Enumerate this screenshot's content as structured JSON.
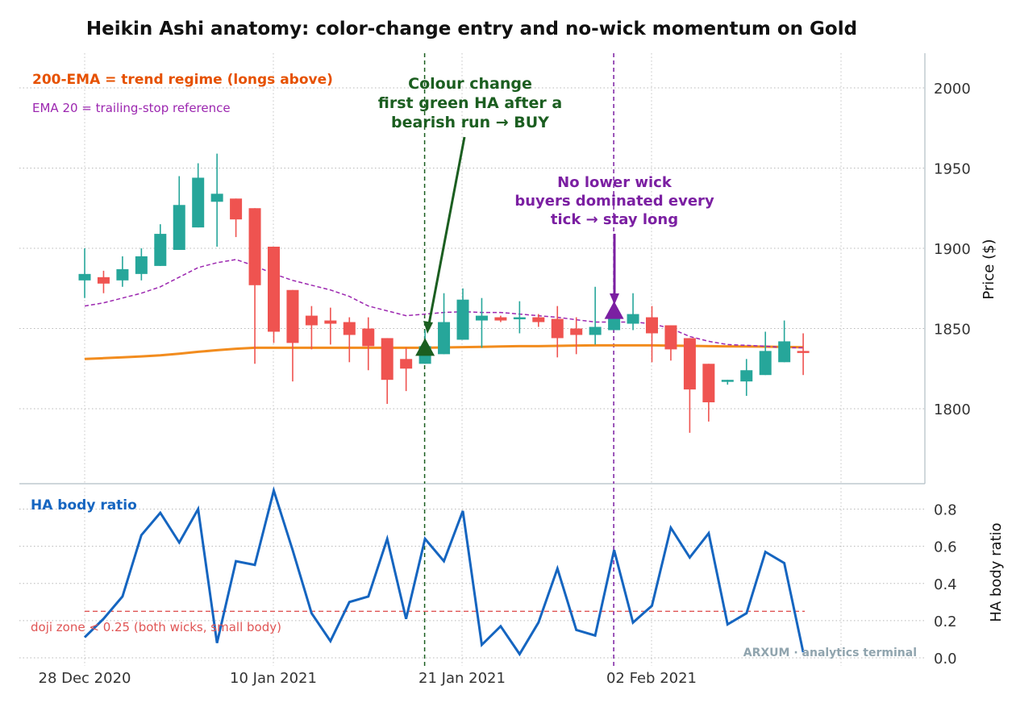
{
  "title": "Heikin Ashi anatomy: color-change entry and no-wick momentum on Gold",
  "watermark": "ARXUM · analytics terminal",
  "chart_data": [
    {
      "type": "candlestick",
      "panel": "price",
      "ylabel": "Price ($)",
      "ylim": [
        1760,
        2022
      ],
      "yticks": [
        1800,
        1850,
        1900,
        1950,
        2000
      ],
      "grid": true,
      "colors": {
        "up": "#26a69a",
        "down": "#ef5350",
        "ema200": "#f28c1e",
        "ema20": "#9c27b0"
      },
      "x_dates": [
        "2020-12-28",
        "2020-12-29",
        "2020-12-30",
        "2020-12-31",
        "2021-01-01",
        "2021-01-04",
        "2021-01-05",
        "2021-01-06",
        "2021-01-07",
        "2021-01-08",
        "2021-01-11",
        "2021-01-12",
        "2021-01-13",
        "2021-01-14",
        "2021-01-15",
        "2021-01-18",
        "2021-01-19",
        "2021-01-20",
        "2021-01-21",
        "2021-01-22",
        "2021-01-25",
        "2021-01-26",
        "2021-01-27",
        "2021-01-28",
        "2021-01-29",
        "2021-02-01",
        "2021-02-02",
        "2021-02-03",
        "2021-02-04",
        "2021-02-05",
        "2021-02-08",
        "2021-02-09",
        "2021-02-10",
        "2021-02-11",
        "2021-02-12",
        "2021-02-15",
        "2021-02-16",
        "2021-02-17",
        "2021-02-18"
      ],
      "ha_candles": [
        {
          "open": 1880,
          "close": 1884,
          "high": 1900,
          "low": 1869
        },
        {
          "open": 1882,
          "close": 1878,
          "high": 1886,
          "low": 1872
        },
        {
          "open": 1880,
          "close": 1887,
          "high": 1895,
          "low": 1876
        },
        {
          "open": 1884,
          "close": 1895,
          "high": 1900,
          "low": 1880
        },
        {
          "open": 1889,
          "close": 1909,
          "high": 1915,
          "low": 1889
        },
        {
          "open": 1899,
          "close": 1927,
          "high": 1945,
          "low": 1899
        },
        {
          "open": 1913,
          "close": 1944,
          "high": 1953,
          "low": 1913
        },
        {
          "open": 1929,
          "close": 1934,
          "high": 1959,
          "low": 1901
        },
        {
          "open": 1931,
          "close": 1918,
          "high": 1931,
          "low": 1907
        },
        {
          "open": 1925,
          "close": 1877,
          "high": 1925,
          "low": 1828
        },
        {
          "open": 1901,
          "close": 1848,
          "high": 1901,
          "low": 1841
        },
        {
          "open": 1874,
          "close": 1841,
          "high": 1874,
          "low": 1817
        },
        {
          "open": 1858,
          "close": 1852,
          "high": 1864,
          "low": 1837
        },
        {
          "open": 1855,
          "close": 1853,
          "high": 1863,
          "low": 1840
        },
        {
          "open": 1854,
          "close": 1846,
          "high": 1857,
          "low": 1829
        },
        {
          "open": 1850,
          "close": 1839,
          "high": 1857,
          "low": 1824
        },
        {
          "open": 1844,
          "close": 1818,
          "high": 1844,
          "low": 1803
        },
        {
          "open": 1831,
          "close": 1825,
          "high": 1838,
          "low": 1811
        },
        {
          "open": 1828,
          "close": 1839,
          "high": 1849,
          "low": 1828
        },
        {
          "open": 1834,
          "close": 1854,
          "high": 1872,
          "low": 1834
        },
        {
          "open": 1843,
          "close": 1868,
          "high": 1875,
          "low": 1843
        },
        {
          "open": 1855,
          "close": 1858,
          "high": 1869,
          "low": 1838
        },
        {
          "open": 1857,
          "close": 1855,
          "high": 1858,
          "low": 1854
        },
        {
          "open": 1857,
          "close": 1857,
          "high": 1867,
          "low": 1847
        },
        {
          "open": 1857,
          "close": 1854,
          "high": 1859,
          "low": 1851
        },
        {
          "open": 1856,
          "close": 1844,
          "high": 1864,
          "low": 1832
        },
        {
          "open": 1850,
          "close": 1846,
          "high": 1857,
          "low": 1834
        },
        {
          "open": 1846,
          "close": 1851,
          "high": 1876,
          "low": 1840
        },
        {
          "open": 1849,
          "close": 1859,
          "high": 1861,
          "low": 1849
        },
        {
          "open": 1853,
          "close": 1859,
          "high": 1872,
          "low": 1849
        },
        {
          "open": 1857,
          "close": 1847,
          "high": 1864,
          "low": 1829
        },
        {
          "open": 1852,
          "close": 1837,
          "high": 1852,
          "low": 1830
        },
        {
          "open": 1844,
          "close": 1812,
          "high": 1844,
          "low": 1785
        },
        {
          "open": 1828,
          "close": 1804,
          "high": 1828,
          "low": 1792
        },
        {
          "open": 1817,
          "close": 1818,
          "high": 1818,
          "low": 1815
        },
        {
          "open": 1817,
          "close": 1824,
          "high": 1831,
          "low": 1808
        },
        {
          "open": 1821,
          "close": 1836,
          "high": 1848,
          "low": 1821
        },
        {
          "open": 1829,
          "close": 1842,
          "high": 1855,
          "low": 1829
        },
        {
          "open": 1836,
          "close": 1835,
          "high": 1847,
          "low": 1821
        }
      ],
      "ema200": [
        1831,
        1831.5,
        1832,
        1832.6,
        1833.3,
        1834.3,
        1835.5,
        1836.5,
        1837.4,
        1838,
        1838,
        1838,
        1838,
        1838,
        1838,
        1838,
        1838,
        1838,
        1838,
        1838.2,
        1838.4,
        1838.6,
        1838.8,
        1839,
        1839,
        1839.2,
        1839.4,
        1839.5,
        1839.5,
        1839.5,
        1839.5,
        1839.3,
        1839.2,
        1839,
        1838.9,
        1838.8,
        1838.7,
        1838.5,
        1838.3
      ],
      "ema20": [
        1864,
        1866,
        1869,
        1872,
        1876,
        1882,
        1888,
        1891,
        1893,
        1889,
        1884,
        1880,
        1877,
        1874,
        1870,
        1864,
        1861,
        1858,
        1859,
        1860,
        1860.5,
        1860,
        1860,
        1859,
        1858,
        1857,
        1855.5,
        1854,
        1854,
        1854,
        1853,
        1850,
        1845,
        1842,
        1840,
        1839.5,
        1839,
        1838,
        1838
      ],
      "annotations": [
        {
          "text_lines": [
            "Colour change",
            "first green HA after a",
            "bearish run  →  BUY"
          ],
          "color": "#1b5e20",
          "target_index": 18
        },
        {
          "text_lines": [
            "No lower wick",
            "buyers dominated every",
            "tick  →  stay long"
          ],
          "color": "#7b1fa2",
          "target_index": 28
        }
      ],
      "legend_notes": [
        {
          "text": "200-EMA = trend regime (longs above)",
          "color": "#e65100"
        },
        {
          "text": "EMA 20 = trailing-stop reference",
          "color": "#9c27b0"
        }
      ]
    },
    {
      "type": "line",
      "panel": "body-ratio",
      "series_name": "HA body ratio",
      "ylabel": "HA body ratio",
      "ylim": [
        -0.03,
        0.9
      ],
      "yticks": [
        0.0,
        0.2,
        0.4,
        0.6,
        0.8
      ],
      "grid": true,
      "color": "#1565c0",
      "values": [
        0.11,
        0.21,
        0.33,
        0.66,
        0.78,
        0.62,
        0.8,
        0.08,
        0.52,
        0.5,
        0.9,
        0.58,
        0.24,
        0.09,
        0.3,
        0.33,
        0.64,
        0.21,
        0.64,
        0.52,
        0.79,
        0.07,
        0.17,
        0.02,
        0.19,
        0.48,
        0.15,
        0.12,
        0.58,
        0.19,
        0.28,
        0.7,
        0.54,
        0.67,
        0.18,
        0.24,
        0.57,
        0.51,
        0.03
      ],
      "threshold": 0.25,
      "threshold_color": "#e05555",
      "threshold_label": "doji zone < 0.25  (both wicks, small body)"
    }
  ],
  "x_axis": {
    "tick_labels": [
      "28 Dec 2020",
      "10 Jan 2021",
      "21 Jan 2021",
      "02 Feb 2021"
    ]
  }
}
